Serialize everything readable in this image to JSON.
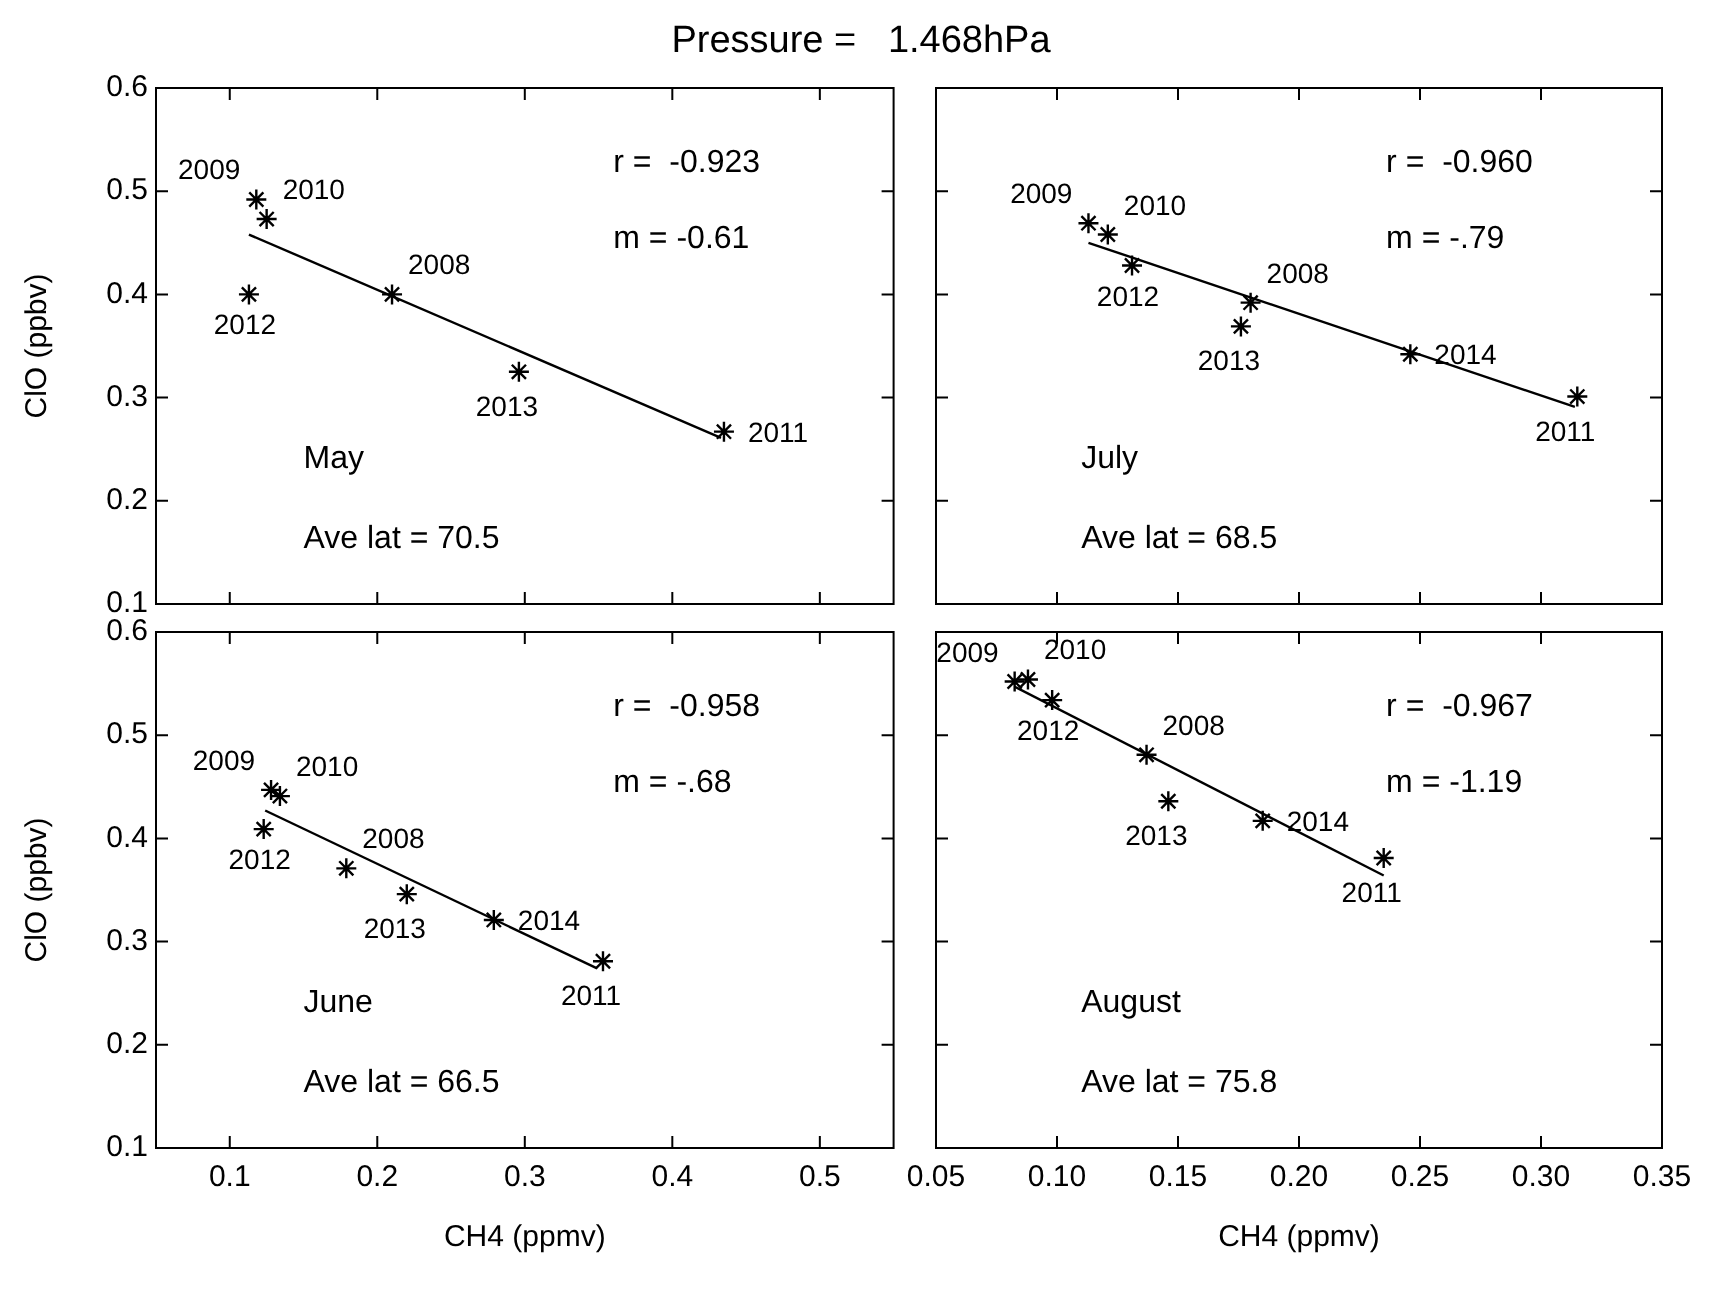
{
  "chart_data": [
    {
      "type": "scatter",
      "title": "Pressure =   1.468hPa",
      "ylabel": "ClO (ppbv)",
      "xlim": [
        0.05,
        0.55
      ],
      "xticks": [
        0.1,
        0.2,
        0.3,
        0.4,
        0.5
      ],
      "ylim": [
        0.1,
        0.6
      ],
      "yticks": [
        0.1,
        0.2,
        0.3,
        0.4,
        0.5,
        0.6
      ],
      "tick_labels": "y",
      "grid": false,
      "marker": "cross",
      "annotations": [
        "r =  -0.923",
        "m = -0.61",
        "May",
        "Ave lat = 70.5",
        {
          "text": "2009",
          "x": 0.118,
          "y": 0.492
        },
        {
          "text": "2010",
          "x": 0.125,
          "y": 0.473
        },
        {
          "text": "2012",
          "x": 0.113,
          "y": 0.4
        },
        {
          "text": "2008",
          "x": 0.21,
          "y": 0.4
        },
        {
          "text": "2013",
          "x": 0.296,
          "y": 0.325
        },
        {
          "text": "2011",
          "x": 0.435,
          "y": 0.267
        }
      ],
      "series": [
        {
          "type": "scatter",
          "color": "#000000",
          "x": [
            0.118,
            0.125,
            0.113,
            0.21,
            0.296,
            0.435
          ],
          "values": [
            0.492,
            0.473,
            0.4,
            0.4,
            0.325,
            0.267
          ]
        },
        {
          "type": "line",
          "color": "#000000",
          "marker": "none",
          "line_style": "solid",
          "x": [
            0.113,
            0.433
          ],
          "values": [
            0.458,
            0.261
          ]
        }
      ]
    },
    {
      "type": "scatter",
      "xlim": [
        0.05,
        0.35
      ],
      "xticks": [
        0.05,
        0.1,
        0.15,
        0.2,
        0.25,
        0.3,
        0.35
      ],
      "ylim": [
        0.1,
        0.6
      ],
      "yticks": [
        0.1,
        0.2,
        0.3,
        0.4,
        0.5,
        0.6
      ],
      "tick_labels": false,
      "grid": false,
      "marker": "cross",
      "annotations": [
        "r =  -0.960",
        "m = -.79",
        "July",
        "Ave lat = 68.5",
        {
          "text": "2009",
          "x": 0.113,
          "y": 0.469
        },
        {
          "text": "2010",
          "x": 0.121,
          "y": 0.458
        },
        {
          "text": "2012",
          "x": 0.131,
          "y": 0.428
        },
        {
          "text": "2008",
          "x": 0.18,
          "y": 0.392
        },
        {
          "text": "2013",
          "x": 0.176,
          "y": 0.369
        },
        {
          "text": "2014",
          "x": 0.246,
          "y": 0.342
        },
        {
          "text": "2011",
          "x": 0.315,
          "y": 0.301
        }
      ],
      "series": [
        {
          "type": "scatter",
          "color": "#000000",
          "x": [
            0.113,
            0.121,
            0.131,
            0.18,
            0.176,
            0.246,
            0.315
          ],
          "values": [
            0.469,
            0.458,
            0.428,
            0.392,
            0.369,
            0.342,
            0.301
          ]
        },
        {
          "type": "line",
          "color": "#000000",
          "marker": "none",
          "line_style": "solid",
          "x": [
            0.113,
            0.314
          ],
          "values": [
            0.45,
            0.291
          ]
        }
      ]
    },
    {
      "type": "scatter",
      "xlabel": "CH4 (ppmv)",
      "ylabel": "ClO (ppbv)",
      "xlim": [
        0.05,
        0.55
      ],
      "xticks": [
        0.1,
        0.2,
        0.3,
        0.4,
        0.5
      ],
      "ylim": [
        0.1,
        0.6
      ],
      "yticks": [
        0.1,
        0.2,
        0.3,
        0.4,
        0.5,
        0.6
      ],
      "grid": false,
      "marker": "cross",
      "annotations": [
        "r =  -0.958",
        "m = -.68",
        "June",
        "Ave lat = 66.5",
        {
          "text": "2009",
          "x": 0.128,
          "y": 0.447
        },
        {
          "text": "2010",
          "x": 0.134,
          "y": 0.441
        },
        {
          "text": "2012",
          "x": 0.123,
          "y": 0.409
        },
        {
          "text": "2008",
          "x": 0.179,
          "y": 0.371
        },
        {
          "text": "2013",
          "x": 0.22,
          "y": 0.346
        },
        {
          "text": "2014",
          "x": 0.279,
          "y": 0.321
        },
        {
          "text": "2011",
          "x": 0.353,
          "y": 0.281
        }
      ],
      "series": [
        {
          "type": "scatter",
          "color": "#000000",
          "x": [
            0.128,
            0.134,
            0.123,
            0.179,
            0.22,
            0.279,
            0.353
          ],
          "values": [
            0.447,
            0.441,
            0.409,
            0.371,
            0.346,
            0.321,
            0.281
          ]
        },
        {
          "type": "line",
          "color": "#000000",
          "marker": "none",
          "line_style": "solid",
          "x": [
            0.124,
            0.349
          ],
          "values": [
            0.427,
            0.274
          ]
        }
      ]
    },
    {
      "type": "scatter",
      "xlabel": "CH4 (ppmv)",
      "xlim": [
        0.05,
        0.35
      ],
      "xticks": [
        0.05,
        {
          "value": 0.1,
          "label": "0.10"
        },
        0.15,
        {
          "value": 0.2,
          "label": "0.20"
        },
        0.25,
        {
          "value": 0.3,
          "label": "0.30"
        },
        0.35
      ],
      "ylim": [
        0.1,
        0.6
      ],
      "yticks": [
        0.1,
        0.2,
        0.3,
        0.4,
        0.5,
        0.6
      ],
      "tick_labels": "x",
      "grid": false,
      "marker": "cross",
      "annotations": [
        "r =  -0.967",
        "m = -1.19",
        "August",
        "Ave lat = 75.8",
        {
          "text": "2009",
          "x": 0.0825,
          "y": 0.552
        },
        {
          "text": "2010",
          "x": 0.088,
          "y": 0.554
        },
        {
          "text": "2012",
          "x": 0.098,
          "y": 0.534
        },
        {
          "text": "2008",
          "x": 0.137,
          "y": 0.481
        },
        {
          "text": "2013",
          "x": 0.146,
          "y": 0.436
        },
        {
          "text": "2014",
          "x": 0.185,
          "y": 0.417
        },
        {
          "text": "2011",
          "x": 0.235,
          "y": 0.381
        }
      ],
      "series": [
        {
          "type": "scatter",
          "color": "#000000",
          "x": [
            0.0825,
            0.088,
            0.098,
            0.137,
            0.146,
            0.185,
            0.235
          ],
          "values": [
            0.552,
            0.554,
            0.534,
            0.481,
            0.436,
            0.417,
            0.381
          ]
        },
        {
          "type": "line",
          "color": "#000000",
          "marker": "none",
          "line_style": "solid",
          "x": [
            0.0825,
            0.235
          ],
          "values": [
            0.547,
            0.364
          ]
        }
      ]
    }
  ]
}
